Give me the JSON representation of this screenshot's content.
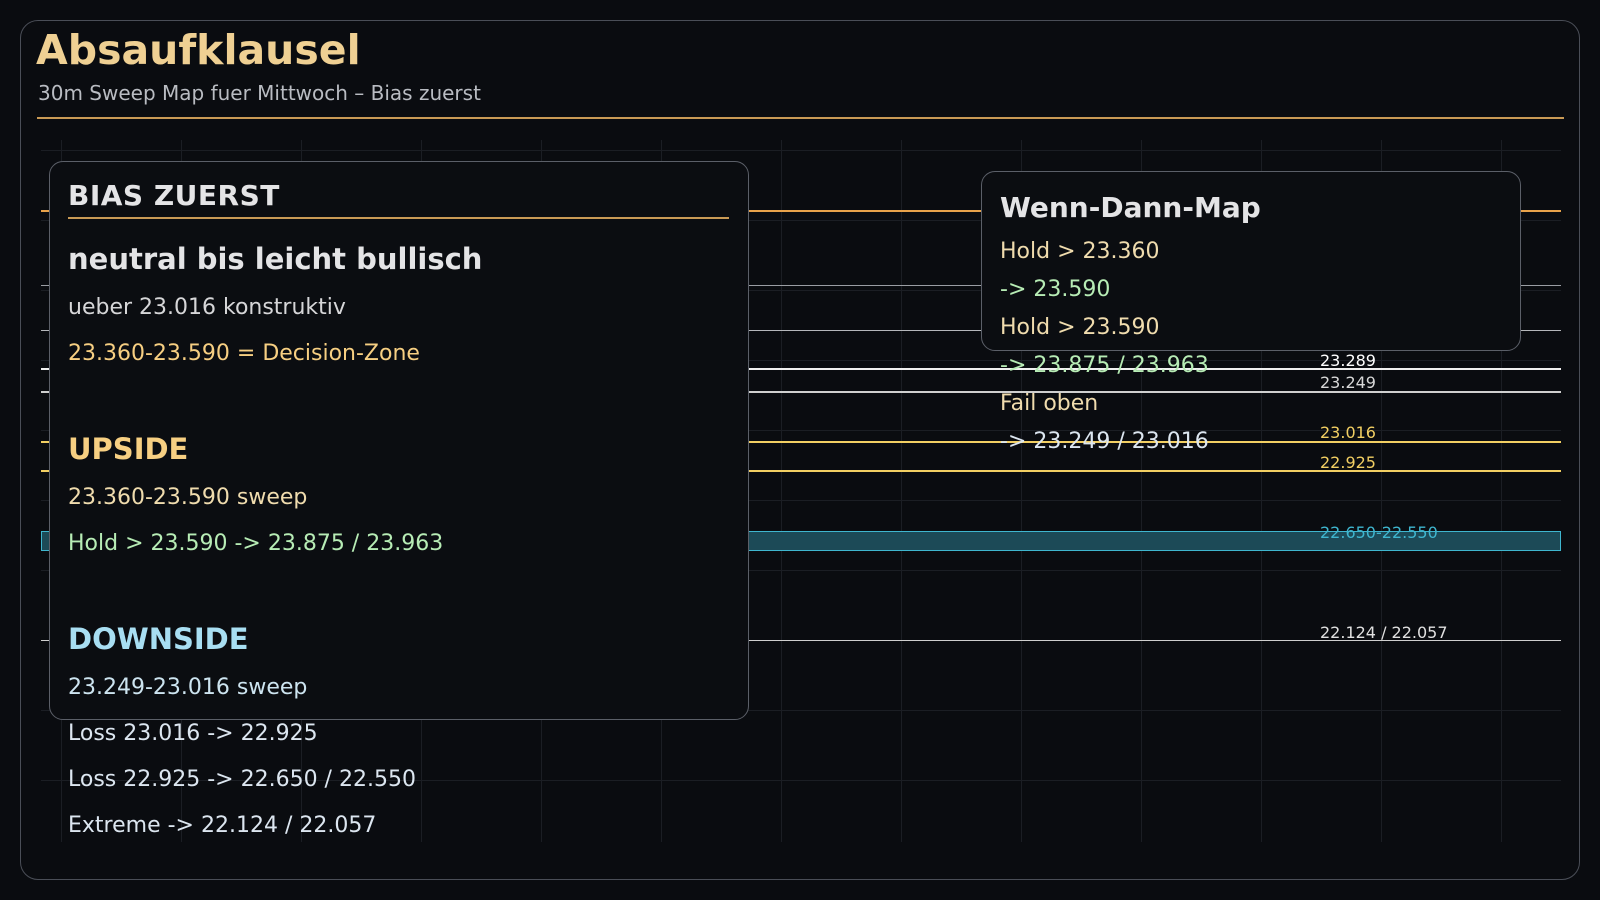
{
  "header": {
    "title": "Absaufklausel",
    "subtitle": "30m Sweep Map fuer Mittwoch – Bias zuerst"
  },
  "colors": {
    "accent": "#efd093",
    "rule": "#c99a55",
    "orange_level": "#e8a24a",
    "yellow_level": "#f2cf63",
    "white_level": "#e8e8e8",
    "band": "#1c4a57",
    "band_border": "#3fb6cf",
    "upside": "#f7cf82",
    "green": "#b7ecb5",
    "downside": "#a8def2"
  },
  "levels": [
    {
      "label": "23.289",
      "color": "#ffffff"
    },
    {
      "label": "23.249",
      "color": "#d8d8d8"
    },
    {
      "label": "23.016",
      "color": "#f2cf63"
    },
    {
      "label": "22.925",
      "color": "#f2cf63"
    },
    {
      "label": "22.650-22.550",
      "color": "#3fb6cf"
    },
    {
      "label": "22.124 / 22.057",
      "color": "#e0e0e0"
    }
  ],
  "bias": {
    "heading": "BIAS ZUERST",
    "stance": "neutral bis leicht bullisch",
    "line1": "ueber 23.016 konstruktiv",
    "line2": "23.360-23.590 = Decision-Zone",
    "upside": {
      "heading": "UPSIDE",
      "lines": [
        "23.360-23.590 sweep",
        "Hold > 23.590 -> 23.875 / 23.963"
      ]
    },
    "downside": {
      "heading": "DOWNSIDE",
      "lines": [
        "23.249-23.016 sweep",
        "Loss 23.016 -> 22.925",
        "Loss 22.925 -> 22.650 / 22.550",
        "Extreme -> 22.124 / 22.057"
      ]
    }
  },
  "map": {
    "heading": "Wenn-Dann-Map",
    "lines": [
      "Hold > 23.360",
      "-> 23.590",
      "Hold > 23.590",
      "-> 23.875 / 23.963",
      "Fail oben",
      "-> 23.249 / 23.016"
    ]
  }
}
